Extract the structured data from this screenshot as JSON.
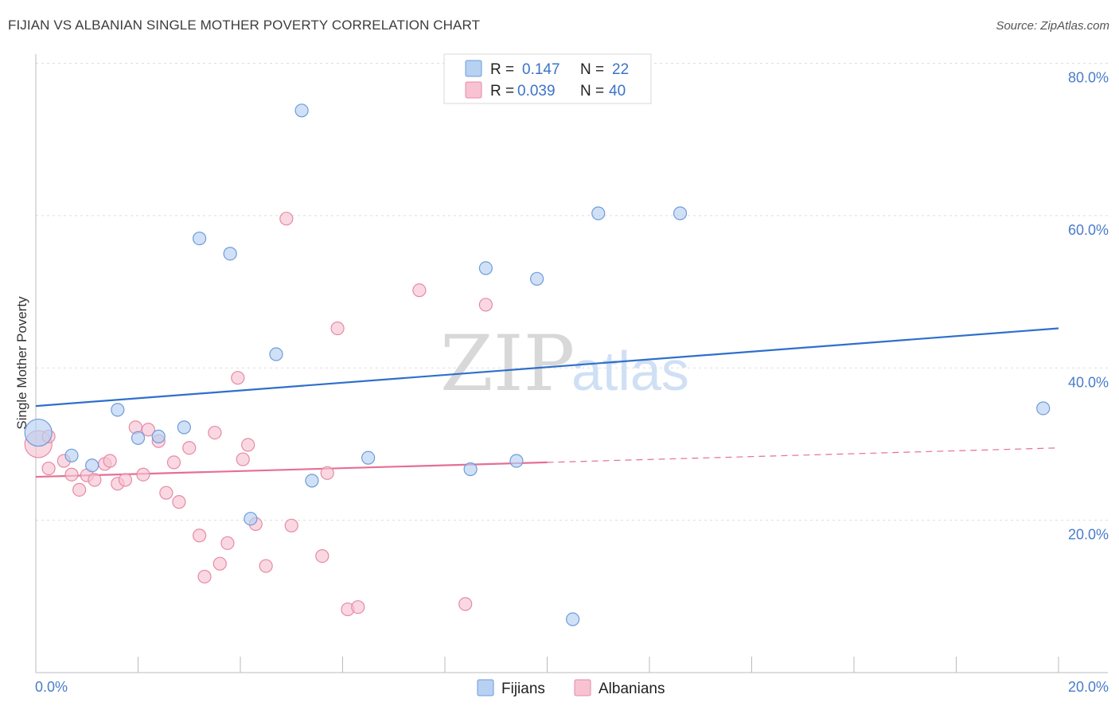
{
  "title": "FIJIAN VS ALBANIAN SINGLE MOTHER POVERTY CORRELATION CHART",
  "source": "Source: ZipAtlas.com",
  "watermark": {
    "zip": "ZIP",
    "atlas": "atlas"
  },
  "legend": {
    "fijians": {
      "r_label": "R =",
      "r_value": "0.147",
      "n_label": "N =",
      "n_value": "22"
    },
    "albanians": {
      "r_label": "R =",
      "r_value": "0.039",
      "n_label": "N =",
      "n_value": "40"
    }
  },
  "bottom_legend": {
    "fijians": "Fijians",
    "albanians": "Albanians"
  },
  "colors": {
    "fijian_fill": "#b7d1f3",
    "fijian_stroke": "#6e9bd8",
    "fijian_line": "#2f6fcc",
    "albanian_fill": "#f7c3d3",
    "albanian_stroke": "#e58aa7",
    "albanian_line": "#e56f96",
    "axis_label": "#4a7cc9",
    "grid": "#dddddd"
  },
  "chart_data": {
    "type": "scatter",
    "title": "FIJIAN VS ALBANIAN SINGLE MOTHER POVERTY CORRELATION CHART",
    "xlabel": "",
    "ylabel": "Single Mother Poverty",
    "xlim": [
      0,
      20
    ],
    "ylim": [
      0,
      80
    ],
    "x_tick_labels": [
      "0.0%",
      "20.0%"
    ],
    "y_ticks": [
      20,
      40,
      60,
      80
    ],
    "y_tick_labels": [
      "20.0%",
      "40.0%",
      "60.0%",
      "80.0%"
    ],
    "grid": true,
    "legend_position": "top-center",
    "series": [
      {
        "name": "Fijians",
        "points": [
          {
            "x": 0.05,
            "y": 31.5,
            "size": "large"
          },
          {
            "x": 0.7,
            "y": 28.5
          },
          {
            "x": 1.1,
            "y": 27.2
          },
          {
            "x": 1.6,
            "y": 34.5
          },
          {
            "x": 2.0,
            "y": 30.8
          },
          {
            "x": 2.4,
            "y": 31.0
          },
          {
            "x": 2.9,
            "y": 32.2
          },
          {
            "x": 3.2,
            "y": 57.0
          },
          {
            "x": 3.8,
            "y": 55.0
          },
          {
            "x": 4.2,
            "y": 20.2
          },
          {
            "x": 4.7,
            "y": 41.8
          },
          {
            "x": 5.2,
            "y": 73.8
          },
          {
            "x": 5.4,
            "y": 25.2
          },
          {
            "x": 6.5,
            "y": 28.2
          },
          {
            "x": 8.5,
            "y": 26.7
          },
          {
            "x": 8.8,
            "y": 53.1
          },
          {
            "x": 9.4,
            "y": 27.8
          },
          {
            "x": 9.8,
            "y": 51.7
          },
          {
            "x": 10.5,
            "y": 7.0
          },
          {
            "x": 11.0,
            "y": 60.3
          },
          {
            "x": 12.6,
            "y": 60.3
          },
          {
            "x": 19.7,
            "y": 34.7
          }
        ],
        "trend": {
          "x": [
            0,
            20
          ],
          "y": [
            35.0,
            45.2
          ]
        }
      },
      {
        "name": "Albanians",
        "points": [
          {
            "x": 0.05,
            "y": 30.0,
            "size": "large"
          },
          {
            "x": 0.25,
            "y": 31.0
          },
          {
            "x": 0.25,
            "y": 26.8
          },
          {
            "x": 0.55,
            "y": 27.8
          },
          {
            "x": 0.7,
            "y": 26.0
          },
          {
            "x": 0.85,
            "y": 24.0
          },
          {
            "x": 1.0,
            "y": 25.9
          },
          {
            "x": 1.15,
            "y": 25.3
          },
          {
            "x": 1.35,
            "y": 27.4
          },
          {
            "x": 1.45,
            "y": 27.8
          },
          {
            "x": 1.6,
            "y": 24.8
          },
          {
            "x": 1.75,
            "y": 25.3
          },
          {
            "x": 1.95,
            "y": 32.2
          },
          {
            "x": 2.1,
            "y": 26.0
          },
          {
            "x": 2.2,
            "y": 31.9
          },
          {
            "x": 2.4,
            "y": 30.4
          },
          {
            "x": 2.55,
            "y": 23.6
          },
          {
            "x": 2.7,
            "y": 27.6
          },
          {
            "x": 2.8,
            "y": 22.4
          },
          {
            "x": 3.0,
            "y": 29.5
          },
          {
            "x": 3.2,
            "y": 18.0
          },
          {
            "x": 3.3,
            "y": 12.6
          },
          {
            "x": 3.5,
            "y": 31.5
          },
          {
            "x": 3.6,
            "y": 14.3
          },
          {
            "x": 3.75,
            "y": 17.0
          },
          {
            "x": 3.95,
            "y": 38.7
          },
          {
            "x": 4.05,
            "y": 28.0
          },
          {
            "x": 4.15,
            "y": 29.9
          },
          {
            "x": 4.3,
            "y": 19.5
          },
          {
            "x": 4.5,
            "y": 14.0
          },
          {
            "x": 4.9,
            "y": 59.6
          },
          {
            "x": 5.0,
            "y": 19.3
          },
          {
            "x": 5.6,
            "y": 15.3
          },
          {
            "x": 5.7,
            "y": 26.2
          },
          {
            "x": 5.9,
            "y": 45.2
          },
          {
            "x": 6.1,
            "y": 8.3
          },
          {
            "x": 6.3,
            "y": 8.6
          },
          {
            "x": 7.5,
            "y": 50.2
          },
          {
            "x": 8.4,
            "y": 9.0
          },
          {
            "x": 8.8,
            "y": 48.3
          }
        ],
        "trend": {
          "x": [
            0,
            10
          ],
          "y": [
            25.7,
            27.6
          ],
          "dashed_extension": {
            "x": [
              10,
              20
            ],
            "y": [
              27.6,
              29.5
            ]
          }
        }
      }
    ]
  }
}
